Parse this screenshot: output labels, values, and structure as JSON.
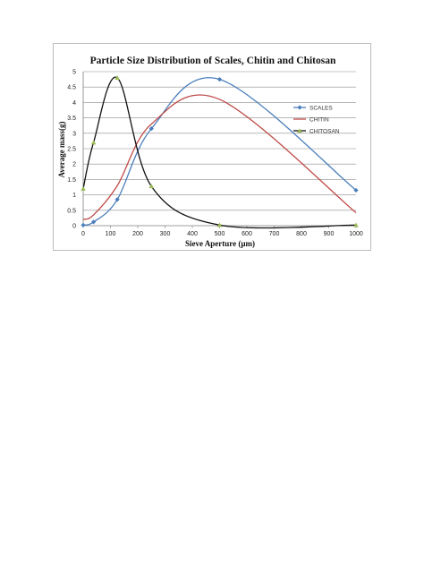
{
  "chart_data": {
    "type": "line",
    "title": "Particle Size Distribution of Scales, Chitin and Chitosan",
    "xlabel": "Sieve Aperture (µm)",
    "ylabel": "Average mass(g)",
    "xlim": [
      0,
      1000
    ],
    "ylim": [
      0,
      5
    ],
    "x_ticks": [
      0,
      100,
      200,
      300,
      400,
      500,
      600,
      700,
      800,
      900,
      1000
    ],
    "y_ticks": [
      0,
      0.5,
      1,
      1.5,
      2,
      2.5,
      3,
      3.5,
      4,
      4.5,
      5
    ],
    "grid": "horizontal",
    "legend_position": "right",
    "series": [
      {
        "name": "SCALES",
        "color": "#4a7ebb",
        "marker": "diamond",
        "x": [
          0,
          38,
          125,
          250,
          500,
          1000
        ],
        "y": [
          0.02,
          0.12,
          0.85,
          3.15,
          4.75,
          1.15
        ]
      },
      {
        "name": "CHITIN",
        "color": "#be4b48",
        "marker": "none",
        "x": [
          0,
          38,
          125,
          250,
          500,
          1000
        ],
        "y": [
          0.2,
          0.35,
          1.3,
          3.3,
          4.1,
          0.42
        ]
      },
      {
        "name": "CHITOSAN",
        "color": "#111111",
        "marker": "triangle",
        "marker_color": "#9bbb59",
        "x": [
          0,
          38,
          125,
          250,
          500,
          1000
        ],
        "y": [
          1.2,
          2.7,
          4.8,
          1.28,
          0.02,
          0.02
        ]
      }
    ]
  }
}
